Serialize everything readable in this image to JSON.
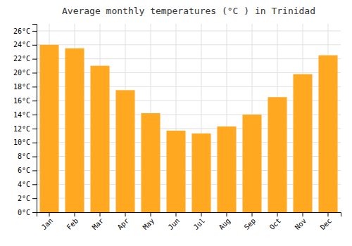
{
  "chart_data": {
    "type": "bar",
    "title": "Average monthly temperatures (°C ) in Trinidad",
    "categories": [
      "Jan",
      "Feb",
      "Mar",
      "Apr",
      "May",
      "Jun",
      "Jul",
      "Aug",
      "Sep",
      "Oct",
      "Nov",
      "Dec"
    ],
    "values": [
      24.0,
      23.5,
      21.0,
      17.5,
      14.2,
      11.7,
      11.3,
      12.3,
      14.0,
      16.5,
      19.8,
      22.5
    ],
    "color": "#FFA820",
    "ylim": [
      0,
      27
    ],
    "yticks": [
      {
        "value": 0,
        "label": "0°C"
      },
      {
        "value": 2,
        "label": "2°C"
      },
      {
        "value": 4,
        "label": "4°C"
      },
      {
        "value": 6,
        "label": "6°C"
      },
      {
        "value": 8,
        "label": "8°C"
      },
      {
        "value": 10,
        "label": "10°C"
      },
      {
        "value": 12,
        "label": "12°C"
      },
      {
        "value": 14,
        "label": "14°C"
      },
      {
        "value": 16,
        "label": "16°C"
      },
      {
        "value": 18,
        "label": "18°C"
      },
      {
        "value": 20,
        "label": "20°C"
      },
      {
        "value": 22,
        "label": "22°C"
      },
      {
        "value": 24,
        "label": "24°C"
      },
      {
        "value": 26,
        "label": "26°C"
      }
    ],
    "grid": true
  }
}
